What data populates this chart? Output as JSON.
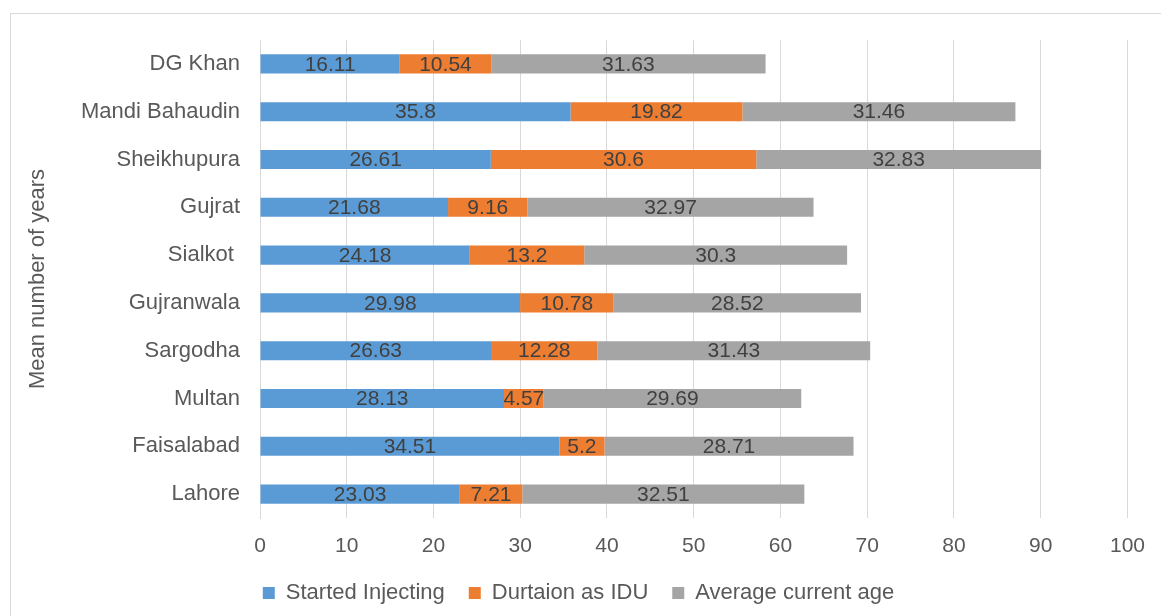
{
  "chart_data": {
    "type": "bar",
    "orientation": "horizontal",
    "stacked": true,
    "ylabel": "Mean number of years",
    "categories": [
      "DG Khan",
      "Mandi Bahaudin",
      "Sheikhupura",
      "Gujrat",
      "Sialkot ",
      "Gujranwala",
      "Sargodha",
      "Multan",
      "Faisalabad",
      "Lahore"
    ],
    "series": [
      {
        "name": "Started Injecting",
        "color": "#5b9bd5",
        "values": [
          16.11,
          35.8,
          26.61,
          21.68,
          24.18,
          29.98,
          26.63,
          28.13,
          34.51,
          23.03
        ]
      },
      {
        "name": "Durtaion as IDU",
        "color": "#ed7d31",
        "values": [
          10.54,
          19.82,
          30.6,
          9.16,
          13.2,
          10.78,
          12.28,
          4.57,
          5.2,
          7.21
        ]
      },
      {
        "name": "Average current age",
        "color": "#a5a5a5",
        "values": [
          31.63,
          31.46,
          32.83,
          32.97,
          30.3,
          28.52,
          31.43,
          29.69,
          28.71,
          32.51
        ]
      }
    ],
    "xlim": [
      0,
      100
    ],
    "xticks": [
      0,
      10,
      20,
      30,
      40,
      50,
      60,
      70,
      80,
      90,
      100
    ],
    "grid": "x",
    "legend": "bottom",
    "data_labels": true
  }
}
